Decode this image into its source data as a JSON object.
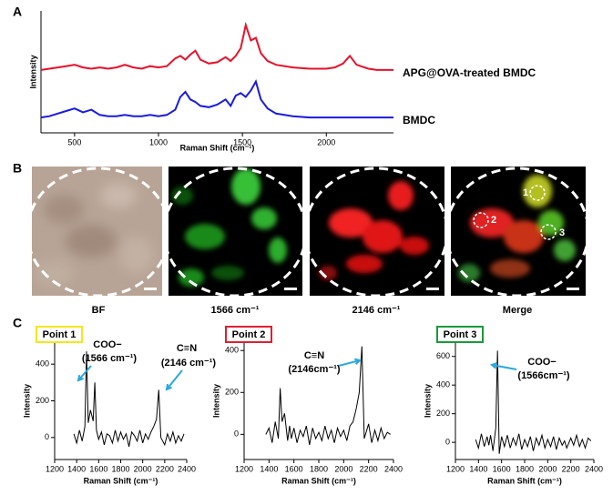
{
  "panel_labels": [
    "A",
    "B",
    "C"
  ],
  "images": {
    "labels": [
      "BF",
      "1566 cm⁻¹",
      "2146 cm⁻¹",
      "Merge"
    ],
    "merge_points": [
      "1",
      "2",
      "3"
    ]
  },
  "chart_data": [
    {
      "type": "line",
      "x_label": "Raman Shift (cm⁻¹)",
      "y_label": "Intensity",
      "xlim": [
        300,
        2400
      ],
      "xticks": [
        500,
        1000,
        1500,
        2000
      ],
      "ylim": [
        1,
        10.5
      ],
      "series": [
        {
          "name": "APG@OVA-treated BMDC",
          "color": "#e8102a",
          "x": [
            300,
            350,
            400,
            450,
            500,
            550,
            600,
            650,
            700,
            750,
            800,
            850,
            900,
            950,
            1000,
            1050,
            1100,
            1130,
            1160,
            1190,
            1220,
            1250,
            1300,
            1350,
            1400,
            1430,
            1460,
            1490,
            1520,
            1550,
            1580,
            1610,
            1650,
            1700,
            1800,
            1900,
            2000,
            2050,
            2100,
            2140,
            2180,
            2250,
            2300,
            2400
          ],
          "values": [
            5.9,
            6.0,
            6.1,
            6.2,
            6.3,
            6.1,
            6.0,
            6.1,
            6.0,
            6.1,
            6.3,
            6.1,
            6.0,
            6.2,
            6.1,
            6.2,
            6.8,
            7.0,
            6.7,
            7.1,
            7.4,
            6.7,
            6.4,
            6.5,
            6.9,
            6.6,
            7.0,
            7.6,
            9.4,
            8.2,
            8.4,
            7.2,
            6.6,
            6.3,
            6.1,
            6.0,
            6.0,
            6.1,
            6.4,
            7.0,
            6.3,
            6.0,
            5.9,
            5.9
          ]
        },
        {
          "name": "BMDC",
          "color": "#1a1adf",
          "x": [
            300,
            350,
            400,
            450,
            500,
            550,
            600,
            650,
            700,
            750,
            800,
            850,
            900,
            950,
            1000,
            1050,
            1100,
            1130,
            1160,
            1190,
            1220,
            1250,
            1300,
            1350,
            1400,
            1430,
            1460,
            1490,
            1520,
            1550,
            1580,
            1610,
            1650,
            1700,
            1800,
            1900,
            2000,
            2050,
            2100,
            2140,
            2180,
            2250,
            2300,
            2400
          ],
          "values": [
            2.2,
            2.3,
            2.5,
            2.7,
            2.9,
            2.6,
            2.8,
            2.4,
            2.3,
            2.3,
            2.4,
            2.3,
            2.3,
            2.4,
            2.3,
            2.4,
            2.8,
            3.8,
            4.2,
            3.6,
            3.4,
            3.1,
            3.0,
            3.2,
            3.6,
            3.1,
            3.9,
            4.1,
            3.8,
            4.3,
            5.0,
            3.6,
            2.9,
            2.5,
            2.3,
            2.2,
            2.2,
            2.2,
            2.2,
            2.2,
            2.2,
            2.2,
            2.2,
            2.2
          ]
        }
      ]
    },
    {
      "type": "line",
      "point_label": "Point 1",
      "point_color": "#f5e61c",
      "x_label": "Raman Shift (cm⁻¹)",
      "y_label": "Intensity",
      "annotations": [
        "COO−",
        "(1566 cm⁻¹)",
        "C≡N",
        "(2146 cm⁻¹)"
      ],
      "xlim": [
        1200,
        2400
      ],
      "xticks": [
        1200,
        1400,
        1600,
        1800,
        2000,
        2200,
        2400
      ],
      "ylim": [
        -120,
        520
      ],
      "yticks": [
        0,
        200,
        400
      ],
      "series": [
        {
          "color": "#000000",
          "x": [
            1375,
            1400,
            1425,
            1450,
            1475,
            1490,
            1505,
            1525,
            1550,
            1565,
            1580,
            1600,
            1625,
            1650,
            1675,
            1700,
            1725,
            1750,
            1775,
            1800,
            1825,
            1850,
            1875,
            1900,
            1925,
            1950,
            1975,
            2000,
            2025,
            2050,
            2075,
            2100,
            2125,
            2146,
            2165,
            2200,
            2225,
            2250,
            2275,
            2300,
            2325,
            2350,
            2375
          ],
          "values": [
            20,
            -30,
            40,
            -20,
            60,
            470,
            80,
            150,
            90,
            300,
            40,
            -10,
            30,
            -40,
            20,
            10,
            -30,
            40,
            -20,
            30,
            -10,
            20,
            -50,
            30,
            10,
            -20,
            40,
            -30,
            20,
            -10,
            30,
            60,
            100,
            260,
            0,
            -40,
            20,
            -20,
            30,
            -30,
            10,
            -20,
            20
          ]
        }
      ]
    },
    {
      "type": "line",
      "point_label": "Point 2",
      "point_color": "#e02030",
      "x_label": "Raman Shift (cm⁻¹)",
      "y_label": "Intensity",
      "annotations": [
        "C≡N",
        "(2146cm⁻¹)"
      ],
      "xlim": [
        1200,
        2400
      ],
      "xticks": [
        1200,
        1400,
        1600,
        1800,
        2000,
        2200,
        2400
      ],
      "ylim": [
        -120,
        440
      ],
      "yticks": [
        0,
        200,
        400
      ],
      "series": [
        {
          "color": "#000000",
          "x": [
            1375,
            1400,
            1425,
            1450,
            1475,
            1490,
            1505,
            1525,
            1550,
            1565,
            1580,
            1600,
            1625,
            1650,
            1675,
            1700,
            1725,
            1750,
            1775,
            1800,
            1825,
            1850,
            1875,
            1900,
            1925,
            1950,
            1975,
            2000,
            2025,
            2050,
            2075,
            2100,
            2125,
            2146,
            2165,
            2200,
            2225,
            2250,
            2275,
            2300,
            2325,
            2350,
            2375
          ],
          "values": [
            0,
            30,
            -40,
            60,
            -20,
            220,
            60,
            100,
            -30,
            40,
            -20,
            30,
            -40,
            20,
            -10,
            40,
            -50,
            30,
            -20,
            10,
            -30,
            40,
            -20,
            20,
            -40,
            30,
            -10,
            20,
            -30,
            40,
            60,
            120,
            200,
            420,
            -20,
            50,
            -40,
            20,
            -30,
            30,
            -20,
            10,
            0
          ]
        }
      ]
    },
    {
      "type": "line",
      "point_label": "Point 3",
      "point_color": "#1a9a3a",
      "x_label": "Raman Shift (cm⁻¹)",
      "y_label": "Intensity",
      "annotations": [
        "COO−",
        "(1566cm⁻¹)"
      ],
      "xlim": [
        1200,
        2400
      ],
      "xticks": [
        1200,
        1400,
        1600,
        1800,
        2000,
        2200,
        2400
      ],
      "ylim": [
        -120,
        700
      ],
      "yticks": [
        0,
        200,
        400,
        600
      ],
      "series": [
        {
          "color": "#000000",
          "x": [
            1375,
            1400,
            1425,
            1450,
            1475,
            1490,
            1505,
            1525,
            1550,
            1565,
            1580,
            1600,
            1625,
            1650,
            1675,
            1700,
            1725,
            1750,
            1775,
            1800,
            1825,
            1850,
            1875,
            1900,
            1925,
            1950,
            1975,
            2000,
            2025,
            2050,
            2075,
            2100,
            2125,
            2146,
            2165,
            2200,
            2225,
            2250,
            2275,
            2300,
            2325,
            2350,
            2375
          ],
          "values": [
            20,
            -40,
            60,
            -30,
            40,
            -20,
            50,
            -60,
            100,
            640,
            -80,
            40,
            -30,
            50,
            -40,
            30,
            -20,
            60,
            -50,
            20,
            -30,
            40,
            -60,
            30,
            -20,
            50,
            -40,
            20,
            -30,
            40,
            -50,
            30,
            -20,
            10,
            -40,
            30,
            -20,
            50,
            -30,
            20,
            -40,
            30,
            10
          ]
        }
      ]
    }
  ]
}
